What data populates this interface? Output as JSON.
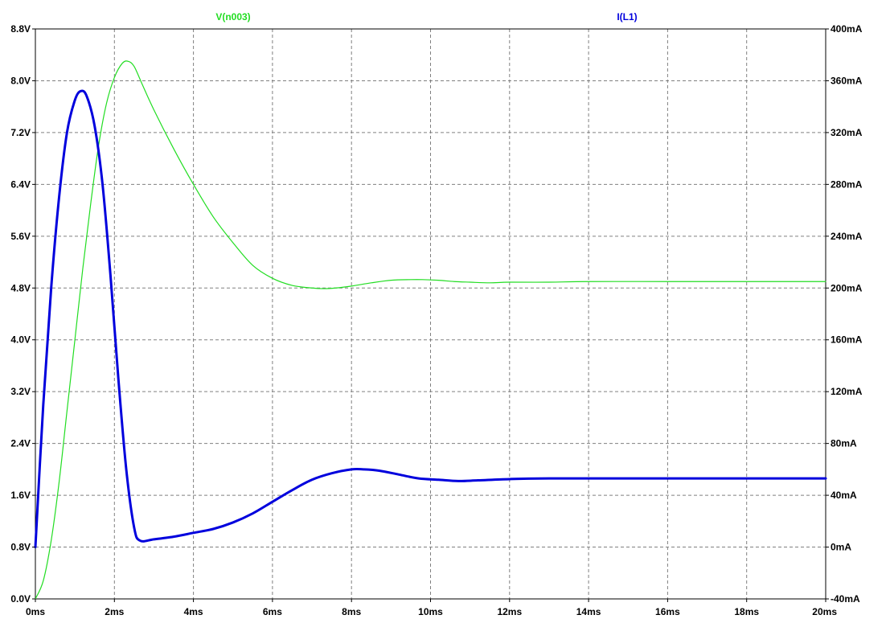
{
  "chart_data": {
    "type": "line",
    "x_unit": "ms",
    "x_range": [
      0,
      20
    ],
    "x_ticks": [
      "0ms",
      "2ms",
      "4ms",
      "6ms",
      "8ms",
      "10ms",
      "12ms",
      "14ms",
      "16ms",
      "18ms",
      "20ms"
    ],
    "y_left": {
      "range": [
        0,
        8.8
      ],
      "ticks": [
        "0.0V",
        "0.8V",
        "1.6V",
        "2.4V",
        "3.2V",
        "4.0V",
        "4.8V",
        "5.6V",
        "6.4V",
        "7.2V",
        "8.0V",
        "8.8V"
      ]
    },
    "y_right": {
      "range": [
        -40,
        400
      ],
      "ticks": [
        "-40mA",
        "0mA",
        "40mA",
        "80mA",
        "120mA",
        "160mA",
        "200mA",
        "240mA",
        "280mA",
        "320mA",
        "360mA",
        "400mA"
      ]
    },
    "grid": true,
    "series": [
      {
        "name": "V(n003)",
        "axis": "left",
        "color": "#22dd22",
        "x": [
          0,
          0.2,
          0.4,
          0.6,
          0.8,
          1.0,
          1.2,
          1.4,
          1.6,
          1.8,
          2.0,
          2.2,
          2.35,
          2.5,
          2.7,
          3.0,
          3.5,
          4.0,
          4.5,
          5.0,
          5.5,
          6.0,
          6.5,
          7.0,
          7.3,
          7.6,
          8.0,
          8.5,
          9.0,
          9.5,
          9.8,
          10.2,
          10.6,
          11.0,
          11.5,
          12.0,
          13.0,
          14.0,
          16.0,
          18.0,
          20.0
        ],
        "y": [
          0.0,
          0.28,
          0.9,
          1.8,
          2.9,
          4.0,
          5.1,
          6.1,
          7.0,
          7.65,
          8.05,
          8.27,
          8.3,
          8.22,
          7.95,
          7.55,
          6.95,
          6.4,
          5.9,
          5.5,
          5.15,
          4.95,
          4.84,
          4.8,
          4.79,
          4.8,
          4.83,
          4.88,
          4.92,
          4.93,
          4.93,
          4.92,
          4.9,
          4.89,
          4.88,
          4.89,
          4.89,
          4.9,
          4.9,
          4.9,
          4.9
        ]
      },
      {
        "name": "I(L1)",
        "axis": "right",
        "color": "#0000dd",
        "x": [
          0,
          0.2,
          0.4,
          0.6,
          0.8,
          1.0,
          1.15,
          1.3,
          1.5,
          1.7,
          1.9,
          2.1,
          2.3,
          2.5,
          2.65,
          3.0,
          3.5,
          4.0,
          4.5,
          5.0,
          5.5,
          6.0,
          6.5,
          7.0,
          7.5,
          8.0,
          8.3,
          8.7,
          9.2,
          9.7,
          10.2,
          10.7,
          11.2,
          12.0,
          13.0,
          14.0,
          16.0,
          18.0,
          20.0
        ],
        "y": [
          0,
          110,
          200,
          270,
          320,
          345,
          352,
          348,
          325,
          280,
          210,
          130,
          60,
          15,
          5,
          6,
          8,
          11,
          14,
          19,
          26,
          35,
          44,
          52,
          57,
          60,
          60,
          59,
          56,
          53,
          52,
          51,
          51.5,
          52.5,
          53,
          53,
          53,
          53,
          53
        ]
      }
    ]
  }
}
